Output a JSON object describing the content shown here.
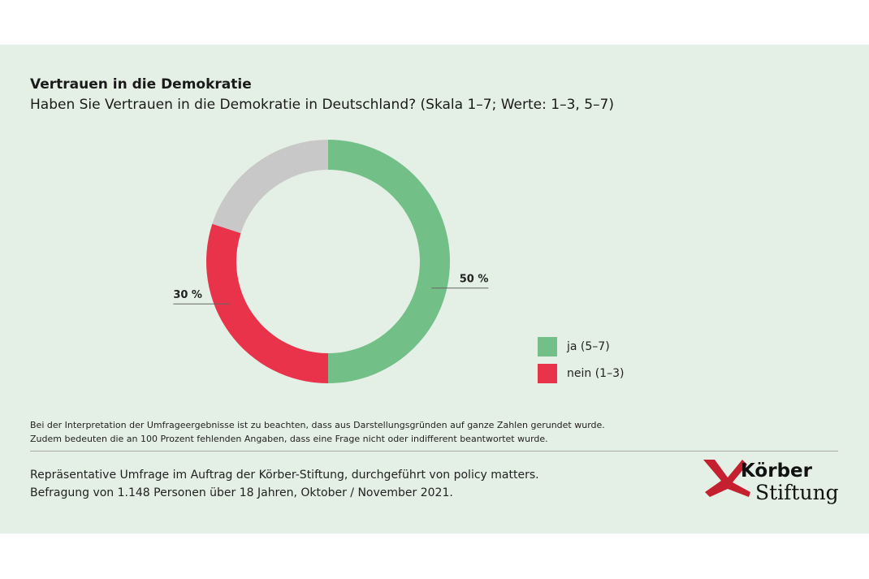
{
  "chart_data": {
    "type": "pie",
    "donut": true,
    "title": "Vertrauen in die Demokratie",
    "subtitle": "Haben Sie Vertrauen in die Demokratie in Deutschland? (Skala 1–7; Werte: 1–3, 5–7)",
    "slices": [
      {
        "name": "ja (5–7)",
        "value": 50,
        "label": "50 %",
        "color": "#72bf87"
      },
      {
        "name": "nein (1–3)",
        "value": 30,
        "label": "30 %",
        "color": "#e8334a"
      },
      {
        "name": "",
        "value": 20,
        "label": "",
        "color": "#c8c8c8"
      }
    ],
    "legend_placement": "right"
  },
  "note": [
    "Bei der Interpretation der Umfrageergebnisse ist zu beachten, dass aus Darstellungsgründen auf ganze Zahlen gerundet wurde.",
    "Zudem bedeuten die an 100 Prozent fehlenden Angaben, dass eine Frage nicht oder indifferent beantwortet wurde."
  ],
  "source": [
    "Repräsentative Umfrage im Auftrag der Körber-Stiftung, durchgeführt von policy matters.",
    "Befragung von 1.148 Personen über 18 Jahren, Oktober / November 2021."
  ],
  "logo": {
    "line1": "Körber",
    "line2": "Stiftung",
    "color": "#c4202f"
  }
}
